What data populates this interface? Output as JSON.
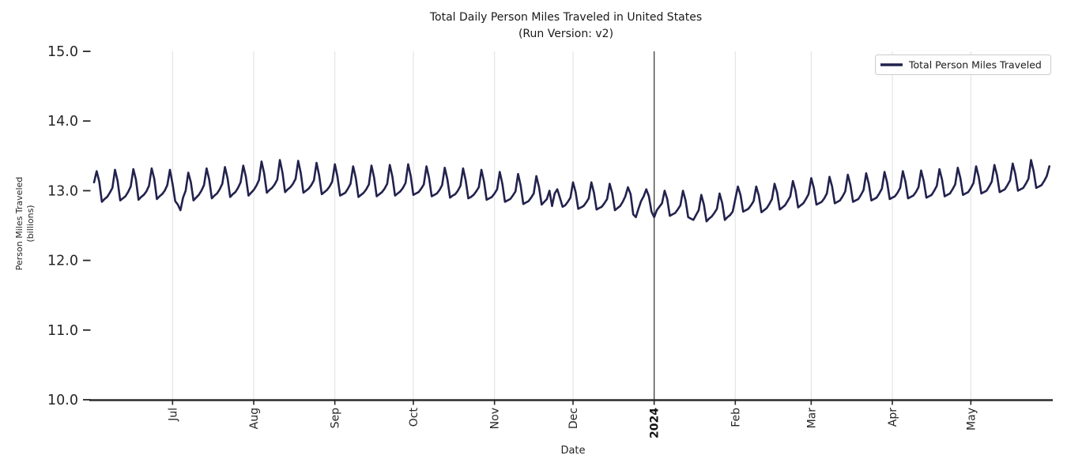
{
  "chart_data": {
    "type": "line",
    "title": "Total Daily Person Miles Traveled in United States",
    "subtitle": "(Run Version: v2)",
    "xlabel": "Date",
    "ylabel": "Person Miles Traveled (billions)",
    "ylabel_lines": [
      "Person Miles Traveled",
      "(billions)"
    ],
    "legend_position": "upper right",
    "grid": "vertical-only",
    "ylim": [
      10.0,
      15.0
    ],
    "y_ticks": [
      10.0,
      11.0,
      12.0,
      13.0,
      14.0,
      15.0
    ],
    "x_start": "2023-06-01",
    "x_end": "2024-05-31",
    "frequency": "daily",
    "x_ticks": [
      {
        "label": "Jul",
        "day_index": 30,
        "bold": false,
        "year_boundary": false
      },
      {
        "label": "Aug",
        "day_index": 61,
        "bold": false,
        "year_boundary": false
      },
      {
        "label": "Sep",
        "day_index": 92,
        "bold": false,
        "year_boundary": false
      },
      {
        "label": "Oct",
        "day_index": 122,
        "bold": false,
        "year_boundary": false
      },
      {
        "label": "Nov",
        "day_index": 153,
        "bold": false,
        "year_boundary": false
      },
      {
        "label": "Dec",
        "day_index": 183,
        "bold": false,
        "year_boundary": false
      },
      {
        "label": "2024",
        "day_index": 214,
        "bold": true,
        "year_boundary": true
      },
      {
        "label": "Feb",
        "day_index": 245,
        "bold": false,
        "year_boundary": false
      },
      {
        "label": "Mar",
        "day_index": 274,
        "bold": false,
        "year_boundary": false
      },
      {
        "label": "Apr",
        "day_index": 305,
        "bold": false,
        "year_boundary": false
      },
      {
        "label": "May",
        "day_index": 335,
        "bold": false,
        "year_boundary": false
      }
    ],
    "colors": {
      "line": "#22224e",
      "grid": "#e2e2e2",
      "year_line": "#3d3d3d",
      "spine": "#2b2b2b",
      "tick": "#262626",
      "legend_border": "#cccccc"
    },
    "series": [
      {
        "name": "Total Person Miles Traveled",
        "values": [
          13.12,
          13.28,
          13.13,
          12.84,
          12.88,
          12.91,
          12.97,
          13.04,
          13.3,
          13.14,
          12.86,
          12.89,
          12.92,
          12.98,
          13.06,
          13.31,
          13.16,
          12.87,
          12.91,
          12.94,
          12.99,
          13.07,
          13.32,
          13.17,
          12.88,
          12.92,
          12.95,
          13.0,
          13.08,
          13.3,
          13.1,
          12.85,
          12.8,
          12.72,
          12.9,
          13.0,
          13.26,
          13.12,
          12.86,
          12.9,
          12.94,
          13.0,
          13.08,
          13.32,
          13.16,
          12.89,
          12.93,
          12.96,
          13.02,
          13.1,
          13.34,
          13.18,
          12.91,
          12.95,
          12.98,
          13.04,
          13.12,
          13.36,
          13.2,
          12.93,
          12.97,
          13.01,
          13.07,
          13.15,
          13.42,
          13.25,
          12.97,
          13.01,
          13.04,
          13.09,
          13.16,
          13.44,
          13.26,
          12.98,
          13.02,
          13.05,
          13.1,
          13.17,
          13.43,
          13.25,
          12.97,
          13.0,
          13.03,
          13.08,
          13.15,
          13.4,
          13.22,
          12.95,
          12.98,
          13.01,
          13.06,
          13.13,
          13.38,
          13.2,
          12.93,
          12.95,
          12.97,
          13.03,
          13.1,
          13.35,
          13.18,
          12.91,
          12.94,
          12.97,
          13.02,
          13.09,
          13.36,
          13.19,
          12.92,
          12.95,
          12.98,
          13.03,
          13.1,
          13.37,
          13.2,
          12.93,
          12.96,
          12.99,
          13.04,
          13.11,
          13.38,
          13.21,
          12.94,
          12.96,
          12.98,
          13.03,
          13.09,
          13.35,
          13.18,
          12.92,
          12.94,
          12.96,
          13.01,
          13.08,
          13.33,
          13.16,
          12.9,
          12.93,
          12.95,
          13.0,
          13.07,
          13.32,
          13.15,
          12.89,
          12.91,
          12.94,
          12.99,
          13.05,
          13.3,
          13.13,
          12.87,
          12.89,
          12.91,
          12.96,
          13.02,
          13.27,
          13.1,
          12.84,
          12.86,
          12.88,
          12.93,
          12.99,
          13.24,
          13.07,
          12.81,
          12.83,
          12.85,
          12.9,
          12.96,
          13.21,
          13.05,
          12.8,
          12.84,
          12.88,
          13.0,
          12.78,
          12.96,
          13.02,
          12.9,
          12.77,
          12.79,
          12.84,
          12.9,
          13.12,
          12.98,
          12.74,
          12.76,
          12.78,
          12.83,
          12.89,
          13.12,
          12.97,
          12.73,
          12.75,
          12.77,
          12.82,
          12.88,
          13.1,
          12.96,
          12.72,
          12.75,
          12.78,
          12.84,
          12.92,
          13.05,
          12.95,
          12.66,
          12.62,
          12.74,
          12.85,
          12.92,
          13.02,
          12.92,
          12.7,
          12.62,
          12.72,
          12.77,
          12.82,
          13.0,
          12.88,
          12.64,
          12.66,
          12.68,
          12.73,
          12.79,
          13.0,
          12.86,
          12.62,
          12.6,
          12.58,
          12.65,
          12.72,
          12.94,
          12.8,
          12.56,
          12.6,
          12.63,
          12.68,
          12.74,
          12.96,
          12.82,
          12.58,
          12.62,
          12.65,
          12.7,
          12.88,
          13.06,
          12.94,
          12.7,
          12.72,
          12.74,
          12.79,
          12.85,
          13.06,
          12.93,
          12.69,
          12.72,
          12.75,
          12.81,
          12.88,
          13.1,
          12.97,
          12.73,
          12.76,
          12.79,
          12.85,
          12.92,
          13.14,
          13.0,
          12.76,
          12.79,
          12.82,
          12.88,
          12.95,
          13.18,
          13.04,
          12.8,
          12.82,
          12.84,
          12.89,
          12.96,
          13.2,
          13.06,
          12.82,
          12.84,
          12.86,
          12.92,
          12.99,
          13.23,
          13.08,
          12.84,
          12.86,
          12.88,
          12.94,
          13.01,
          13.25,
          13.1,
          12.86,
          12.88,
          12.9,
          12.96,
          13.03,
          13.27,
          13.12,
          12.88,
          12.9,
          12.92,
          12.97,
          13.04,
          13.28,
          13.13,
          12.89,
          12.91,
          12.93,
          12.98,
          13.05,
          13.29,
          13.14,
          12.9,
          12.92,
          12.94,
          13.0,
          13.07,
          13.31,
          13.16,
          12.92,
          12.94,
          12.96,
          13.02,
          13.09,
          13.33,
          13.18,
          12.94,
          12.96,
          12.98,
          13.04,
          13.11,
          13.35,
          13.2,
          12.96,
          12.98,
          13.0,
          13.06,
          13.13,
          13.37,
          13.22,
          12.98,
          13.0,
          13.02,
          13.08,
          13.15,
          13.39,
          13.24,
          13.0,
          13.02,
          13.04,
          13.1,
          13.17,
          13.44,
          13.28,
          13.04,
          13.06,
          13.08,
          13.14,
          13.21,
          13.35
        ]
      }
    ]
  }
}
